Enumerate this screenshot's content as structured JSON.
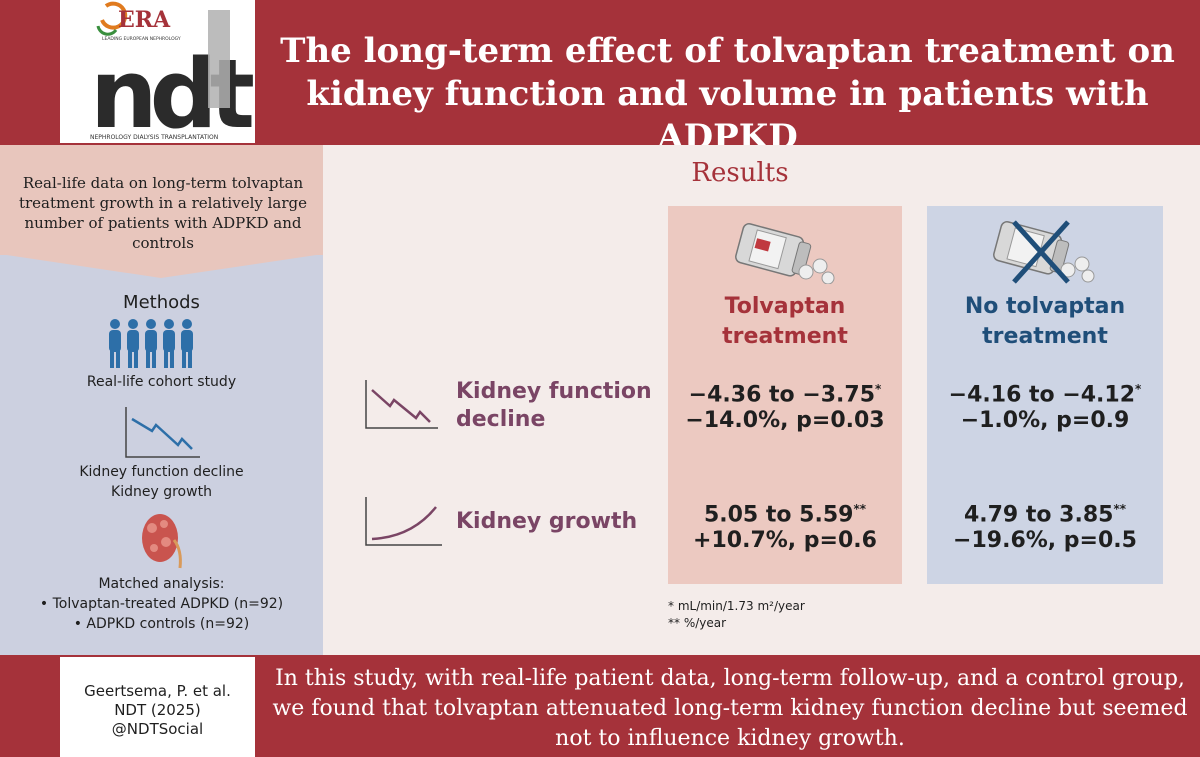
{
  "header": {
    "title": "The long-term effect of tolvaptan treatment on kidney function and volume in patients with ADPKD",
    "logo": {
      "era_text": "ERA",
      "era_subtext": "LEADING EUROPEAN NEPHROLOGY",
      "ndt_text": "ndt",
      "ndt_subtext": "NEPHROLOGY DIALYSIS TRANSPLANTATION"
    }
  },
  "left_panel": {
    "intro": "Real-life data on long-term tolvaptan treatment growth in a relatively large number of patients with ADPKD and controls",
    "methods_title": "Methods",
    "cohort_label": "Real-life cohort study",
    "outcome_line1": "Kidney function decline",
    "outcome_line2": "Kidney growth",
    "matched_title": "Matched analysis:",
    "matched_item1": "• Tolvaptan-treated ADPKD (n=92)",
    "matched_item2": "• ADPKD controls (n=92)"
  },
  "results": {
    "title": "Results",
    "col_tolvaptan_line1": "Tolvaptan",
    "col_tolvaptan_line2": "treatment",
    "col_no_tolvaptan_line1": "No tolvaptan",
    "col_no_tolvaptan_line2": "treatment",
    "row_function_line1": "Kidney function",
    "row_function_line2": "decline",
    "row_growth": "Kidney growth",
    "tolv_function_range": "−4.36 to −3.75",
    "tolv_function_change": "−14.0%, p=0.03",
    "notolv_function_range": "−4.16 to −4.12",
    "notolv_function_change": "−1.0%, p=0.9",
    "tolv_growth_range": "5.05 to 5.59",
    "tolv_growth_change": "+10.7%, p=0.6",
    "notolv_growth_range": "4.79 to 3.85",
    "notolv_growth_change": "−19.6%, p=0.5",
    "mark_single": "*",
    "mark_double": "**",
    "footnote1": "* mL/min/1.73 m²/year",
    "footnote2": "** %/year"
  },
  "footer": {
    "citation_line1": "Geertsema, P. et al.",
    "citation_line2": "NDT (2025)",
    "citation_line3": "@NDTSocial",
    "conclusion": "In this study, with real-life patient data, long-term follow-up, and a control group, we found that tolvaptan attenuated long-term kidney function decline but seemed not to influence kidney growth."
  },
  "colors": {
    "brand_red": "#a5323a",
    "navy": "#1f4e79",
    "plum": "#7a4565",
    "pink_panel": "#ecc9c1",
    "blue_panel": "#cdd4e4"
  }
}
